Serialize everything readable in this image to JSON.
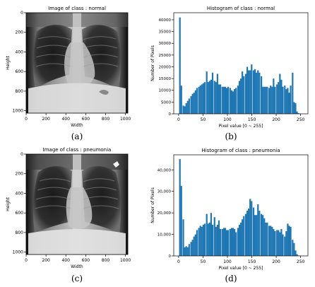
{
  "panel_labels": [
    "(a)",
    "(b)",
    "(c)",
    "(d)"
  ],
  "image_panels": [
    {
      "title": "Image of class : normal",
      "xlabel": "Width",
      "ylabel": "Height",
      "xticks": [
        "0",
        "200",
        "400",
        "600",
        "800",
        "1000"
      ],
      "yticks": [
        "0",
        "200",
        "400",
        "600",
        "800",
        "1000"
      ]
    },
    {
      "title": "Image of class : pneumonia",
      "xlabel": "Width",
      "ylabel": "Height",
      "xticks": [
        "0",
        "200",
        "400",
        "600",
        "800",
        "1000"
      ],
      "yticks": [
        "0",
        "200",
        "400",
        "600",
        "800",
        "1000"
      ]
    }
  ],
  "chart_data": [
    {
      "type": "bar",
      "title": "Histogram of class : normal",
      "xlabel": "Pixel value [0 ~ 255]",
      "ylabel": "Number of Pixels",
      "xlim": [
        -10,
        265
      ],
      "ylim": [
        0,
        43000
      ],
      "xticks": [
        0,
        50,
        100,
        150,
        200,
        250
      ],
      "yticks": [
        0,
        5000,
        10000,
        15000,
        20000,
        25000,
        30000,
        35000,
        40000
      ],
      "ytick_labels": [
        "0",
        "5000",
        "10000",
        "15000",
        "20000",
        "25000",
        "30000",
        "35000",
        "40000"
      ],
      "bin_width": 3.2,
      "color": "#1f77b4",
      "x": [
        1,
        4,
        8,
        11,
        14,
        17,
        20,
        24,
        27,
        30,
        33,
        36,
        40,
        43,
        46,
        49,
        52,
        56,
        59,
        62,
        65,
        68,
        72,
        75,
        78,
        81,
        84,
        88,
        91,
        94,
        97,
        100,
        104,
        107,
        110,
        113,
        116,
        120,
        123,
        126,
        129,
        132,
        136,
        139,
        142,
        145,
        148,
        152,
        155,
        158,
        161,
        164,
        168,
        171,
        174,
        177,
        180,
        184,
        187,
        190,
        193,
        196,
        200,
        203,
        206,
        209,
        212,
        216,
        219,
        222,
        225,
        228,
        232,
        235,
        238,
        241,
        244
      ],
      "values": [
        41000,
        12000,
        3500,
        3200,
        4500,
        5500,
        6500,
        7500,
        8500,
        9000,
        10000,
        11000,
        11500,
        12000,
        12500,
        13000,
        13500,
        18000,
        13500,
        14000,
        14500,
        17500,
        14000,
        13500,
        17000,
        12500,
        12500,
        11500,
        11500,
        11500,
        11000,
        11500,
        11000,
        10000,
        9500,
        10500,
        11000,
        12000,
        14000,
        15000,
        18000,
        16000,
        17000,
        20000,
        18500,
        18500,
        21000,
        18500,
        19000,
        17500,
        18500,
        17500,
        16000,
        11500,
        11500,
        11500,
        11500,
        11000,
        12000,
        11500,
        15000,
        11500,
        12500,
        13500,
        17000,
        14500,
        11500,
        12000,
        10500,
        11000,
        9000,
        12000,
        17500,
        5000,
        4500,
        1000,
        300
      ]
    },
    {
      "type": "bar",
      "title": "Histogram of class : pneumonia",
      "xlabel": "Pixel value [0 ~ 255]",
      "ylabel": "Number of Pixels",
      "xlim": [
        -10,
        265
      ],
      "ylim": [
        0,
        47000
      ],
      "xticks": [
        0,
        50,
        100,
        150,
        200,
        250
      ],
      "yticks": [
        0,
        10000,
        20000,
        30000,
        40000
      ],
      "ytick_labels": [
        "0",
        "10,000",
        "20,000",
        "30,000",
        "40,000"
      ],
      "bin_width": 3.2,
      "color": "#1f77b4",
      "x": [
        1,
        4,
        8,
        11,
        14,
        17,
        20,
        24,
        27,
        30,
        33,
        36,
        40,
        43,
        46,
        49,
        52,
        56,
        59,
        62,
        65,
        68,
        72,
        75,
        78,
        81,
        84,
        88,
        91,
        94,
        97,
        100,
        104,
        107,
        110,
        113,
        116,
        120,
        123,
        126,
        129,
        132,
        136,
        139,
        142,
        145,
        148,
        152,
        155,
        158,
        161,
        164,
        168,
        171,
        174,
        177,
        180,
        184,
        187,
        190,
        193,
        196,
        200,
        203,
        206,
        209,
        212,
        216,
        219,
        222,
        225,
        228,
        232,
        235,
        238,
        241,
        244
      ],
      "values": [
        45000,
        32500,
        17000,
        4000,
        4500,
        4000,
        5500,
        6500,
        7500,
        9000,
        10000,
        12000,
        13000,
        14000,
        13500,
        14500,
        15000,
        19500,
        15000,
        15500,
        20000,
        14500,
        18000,
        13500,
        14500,
        16500,
        12500,
        12500,
        13000,
        13000,
        12000,
        12000,
        12500,
        13000,
        13000,
        12500,
        11000,
        13000,
        14500,
        15500,
        17000,
        18500,
        19500,
        21000,
        22000,
        26500,
        25500,
        22500,
        19000,
        19000,
        24000,
        21000,
        19500,
        19000,
        17500,
        15500,
        15500,
        14000,
        14000,
        13500,
        12500,
        11500,
        12000,
        12000,
        11000,
        12500,
        10000,
        9000,
        11500,
        15000,
        14000,
        13500,
        7500,
        6000,
        2500,
        800,
        200
      ]
    }
  ]
}
